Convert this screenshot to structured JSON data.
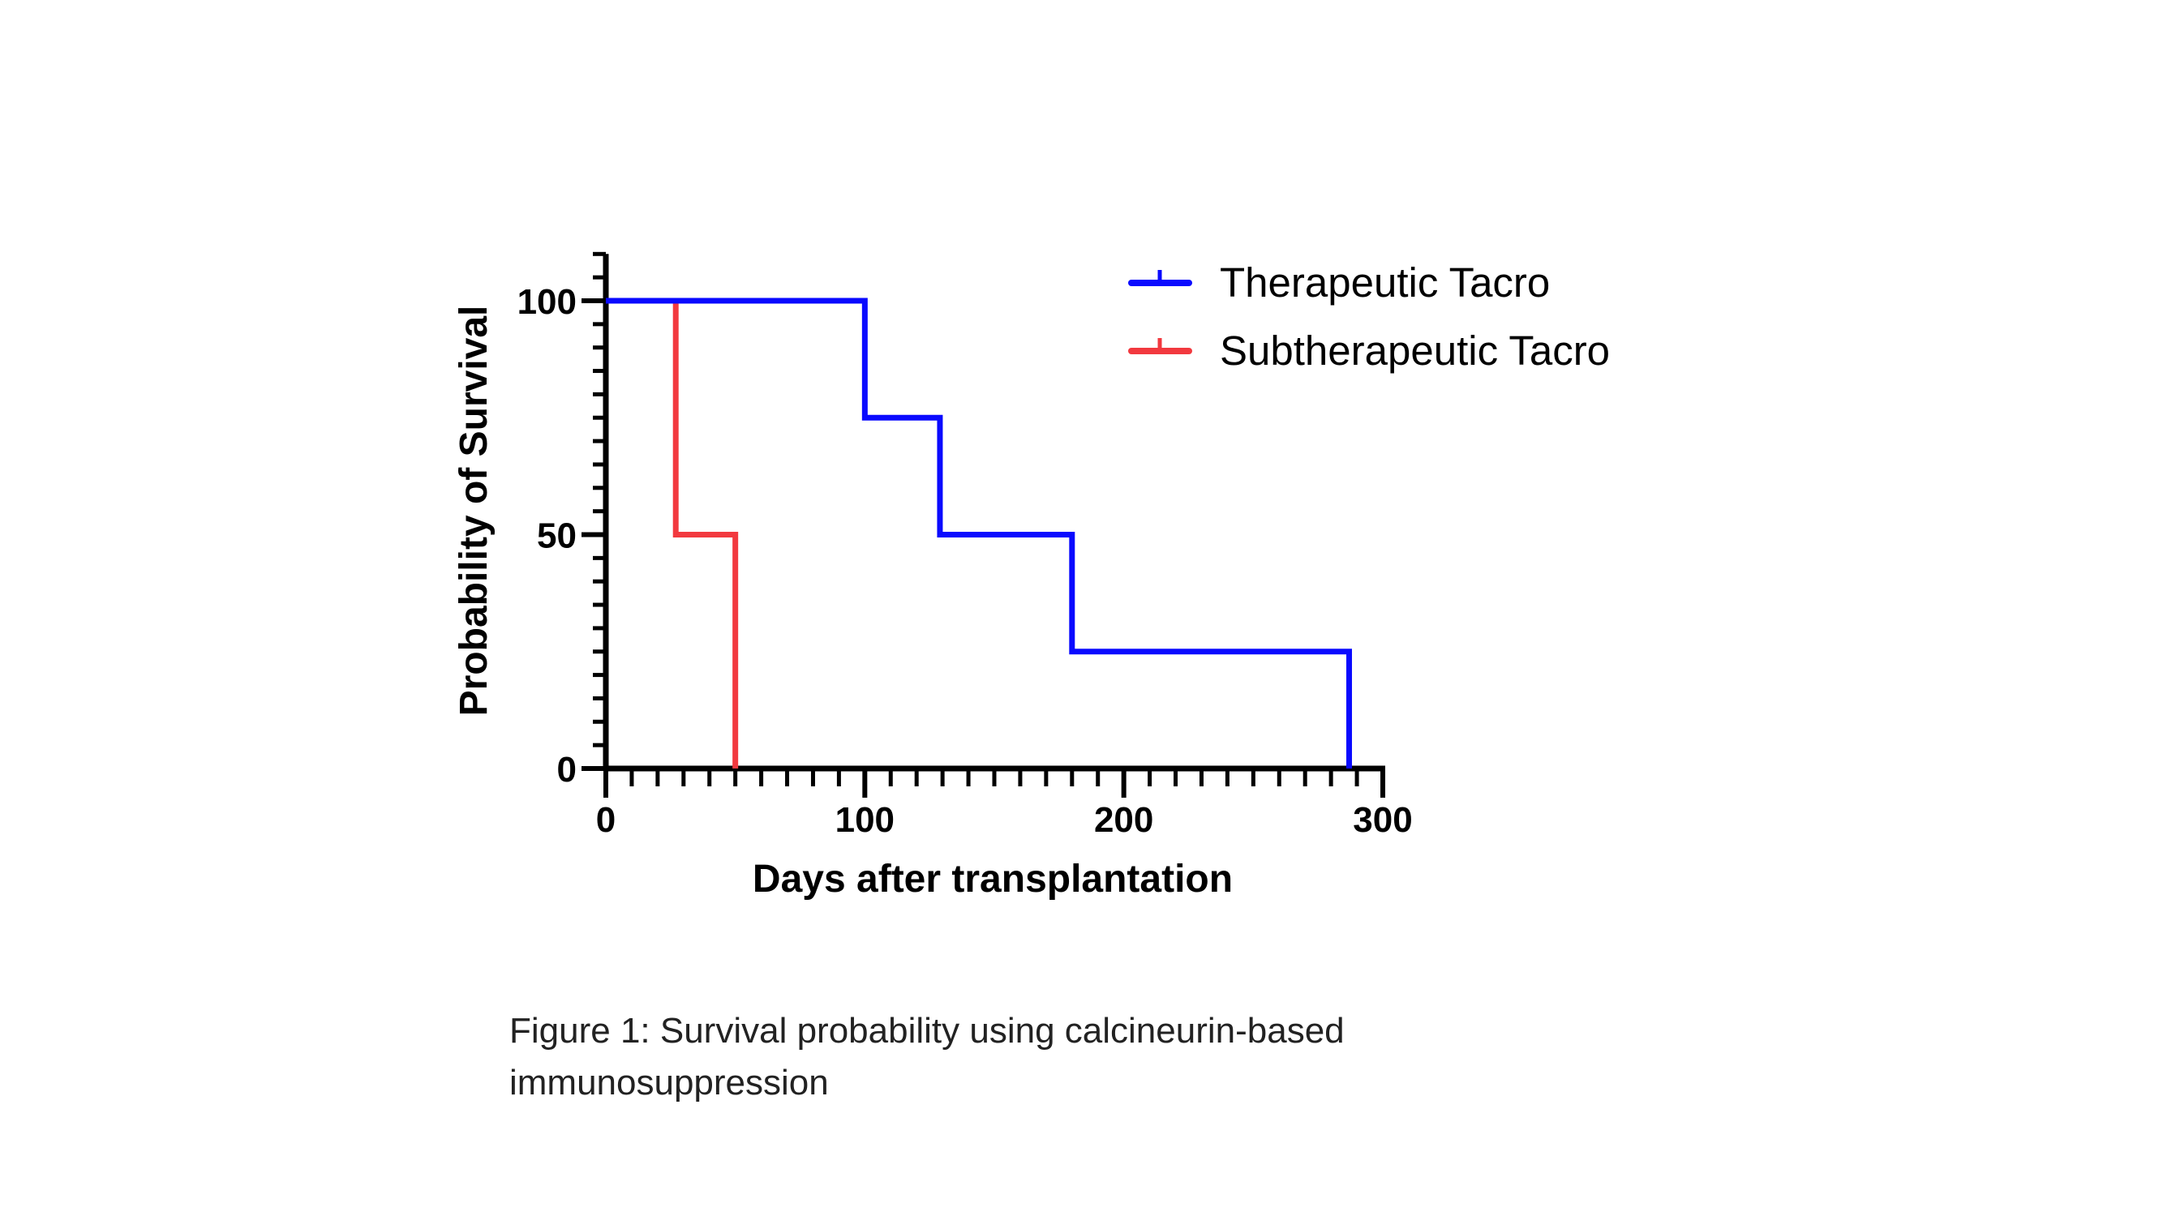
{
  "chart_data": {
    "type": "line",
    "subtype": "kaplan-meier-step",
    "xlabel": "Days after transplantation",
    "ylabel": "Probability of Survival",
    "xlim": [
      0,
      300
    ],
    "ylim": [
      0,
      110
    ],
    "xticks": [
      0,
      100,
      200,
      300
    ],
    "yticks": [
      0,
      50,
      100
    ],
    "x_minor_step": 10,
    "y_minor_step": 5,
    "grid": false,
    "legend_position": "top-right",
    "series": [
      {
        "name": "Therapeutic Tacro",
        "color": "#0a0aff",
        "steps": [
          [
            0,
            100
          ],
          [
            100,
            100
          ],
          [
            100,
            75
          ],
          [
            129,
            75
          ],
          [
            129,
            50
          ],
          [
            180,
            50
          ],
          [
            180,
            25
          ],
          [
            287,
            25
          ],
          [
            287,
            0
          ]
        ]
      },
      {
        "name": "Subtherapeutic Tacro",
        "color": "#f2393f",
        "steps": [
          [
            0,
            100
          ],
          [
            27,
            100
          ],
          [
            27,
            50
          ],
          [
            50,
            50
          ],
          [
            50,
            0
          ]
        ]
      }
    ]
  },
  "caption": {
    "line1": "Figure 1: Survival probability using calcineurin-based",
    "line2": "immunosuppression"
  }
}
